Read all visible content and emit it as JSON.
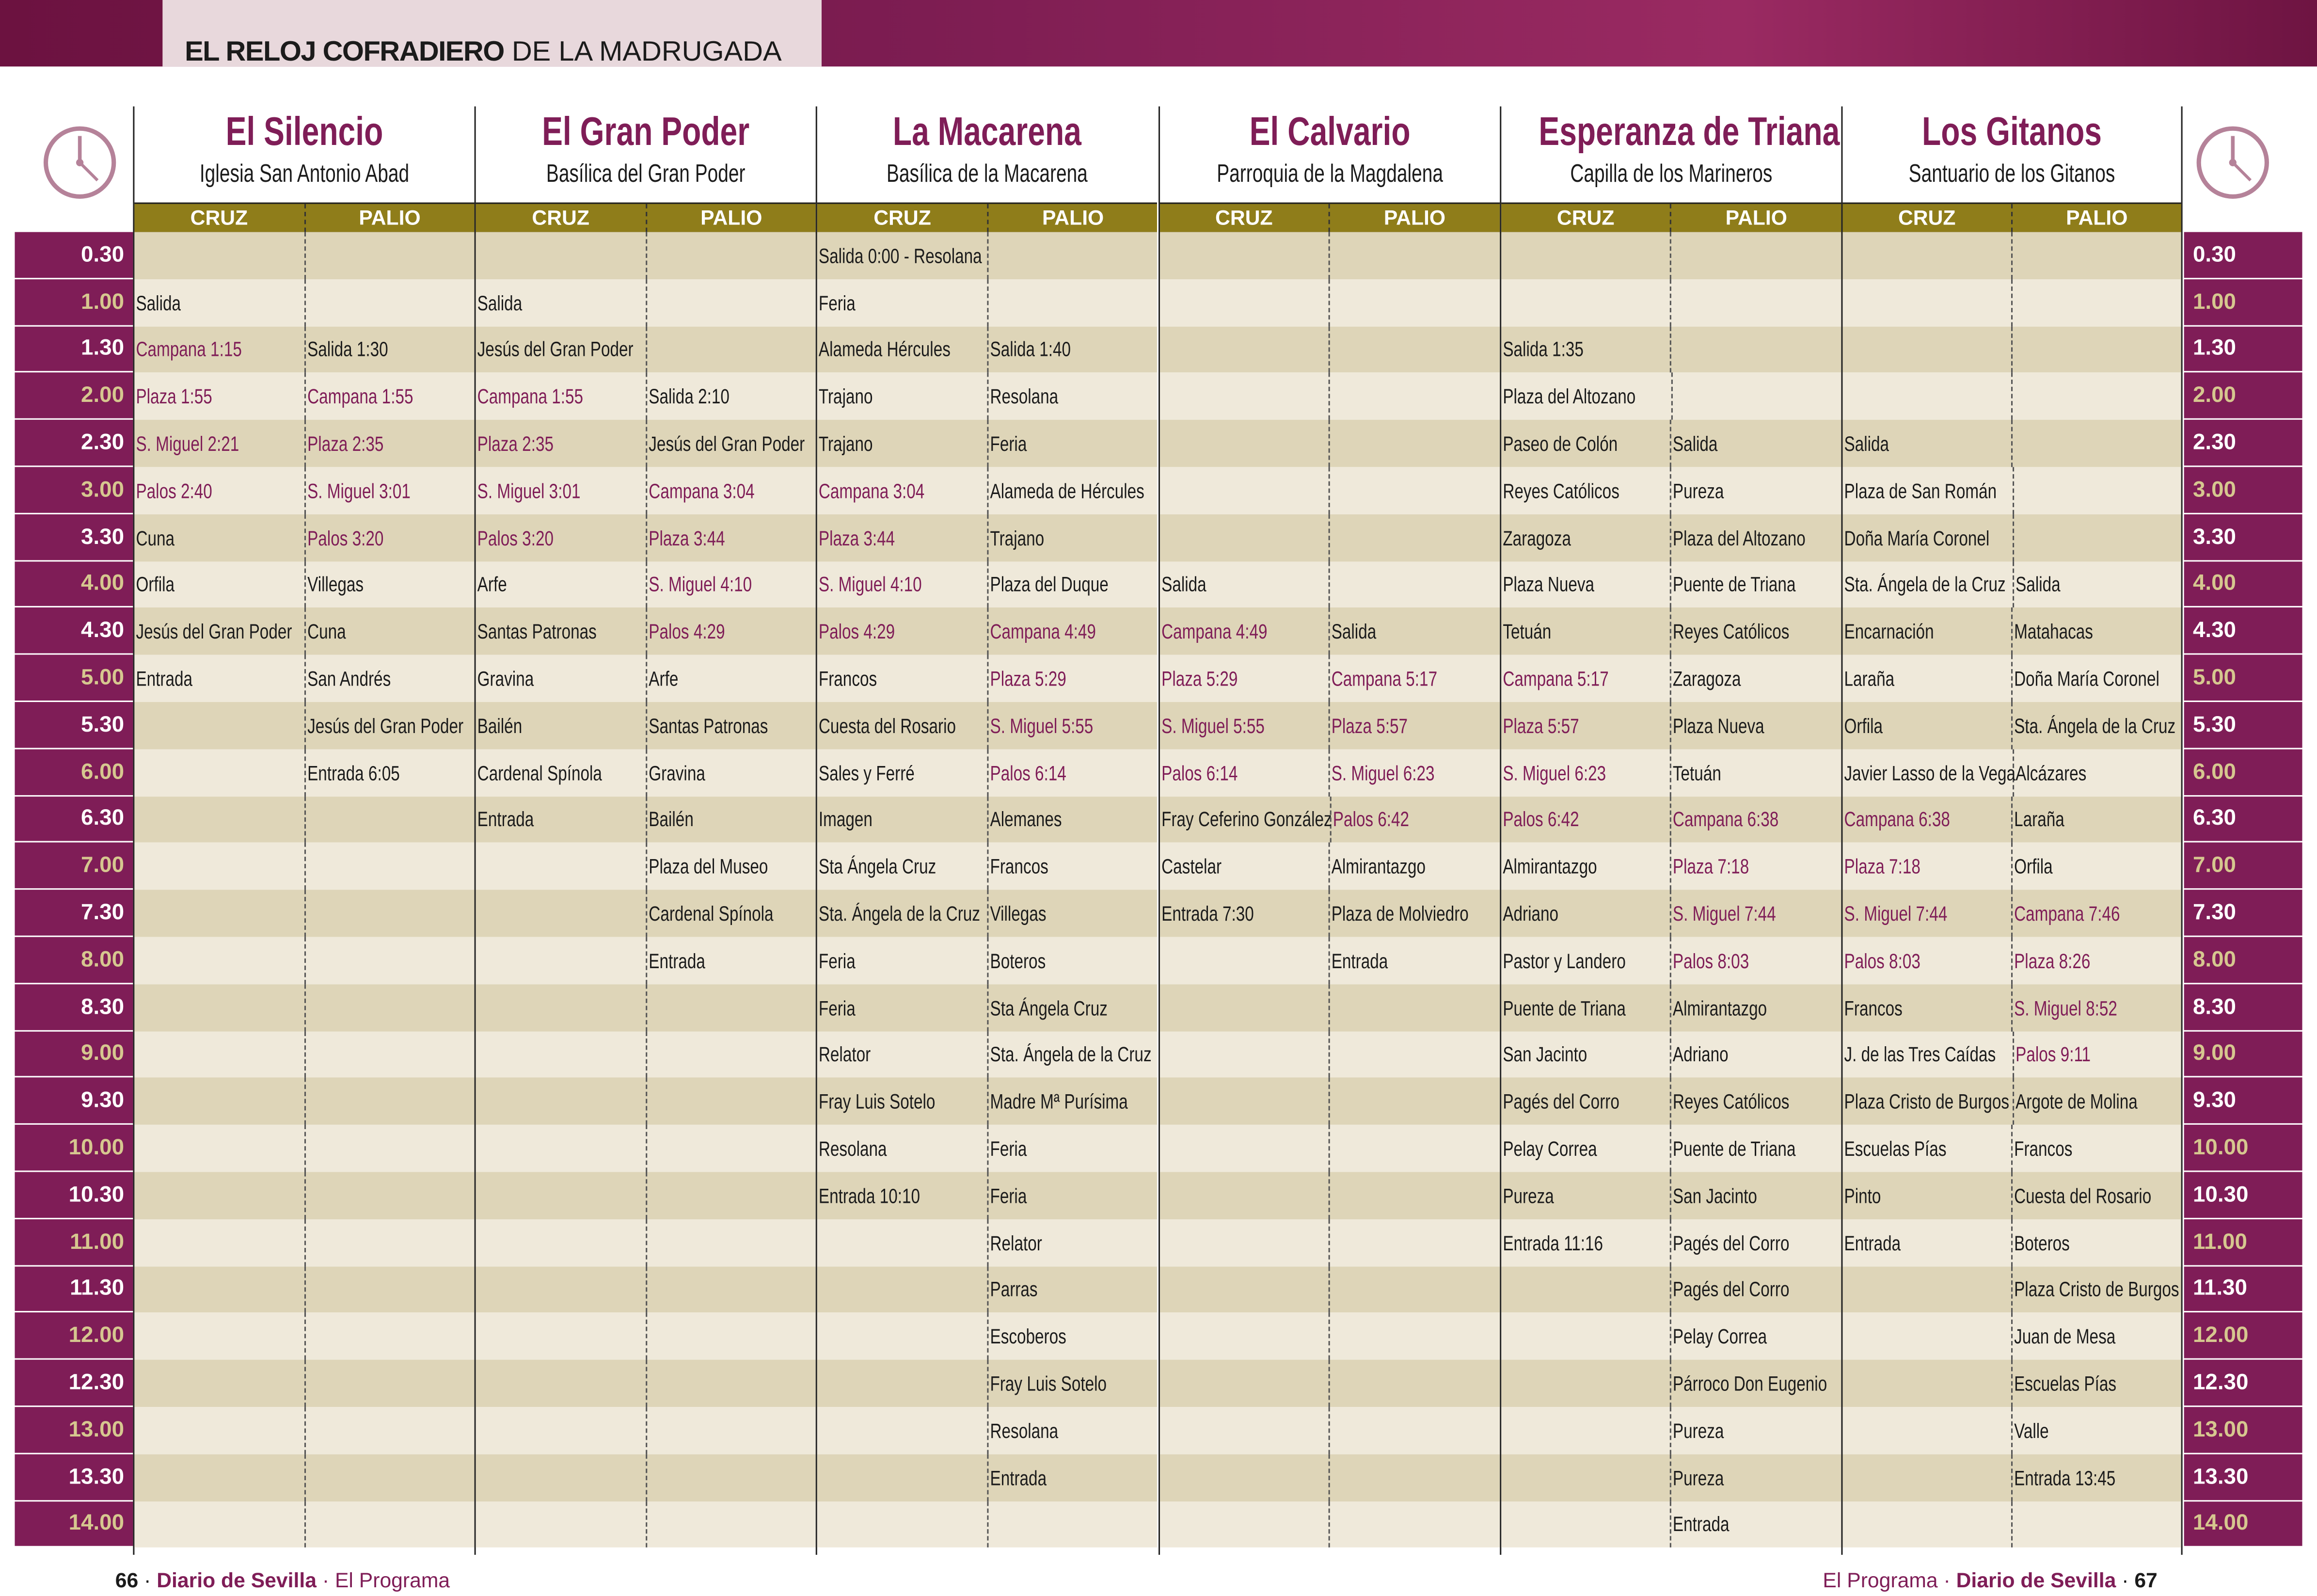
{
  "header": {
    "title_bold": "EL RELOJ COFRADIERO",
    "title_rest": "DE LA MADRUGADA"
  },
  "colors": {
    "brand": "#7f1d57",
    "subheader": "#8f7d1a",
    "row_dark": "#ded5b8",
    "row_light": "#efe9da",
    "full_hour_text": "#d6c78f",
    "clock": "#b58299"
  },
  "icons": {
    "clock": "clock-icon"
  },
  "columns": {
    "cruz": "CRUZ",
    "palio": "PALIO"
  },
  "times": [
    "0.30",
    "1.00",
    "1.30",
    "2.00",
    "2.30",
    "3.00",
    "3.30",
    "4.00",
    "4.30",
    "5.00",
    "5.30",
    "6.00",
    "6.30",
    "7.00",
    "7.30",
    "8.00",
    "8.30",
    "9.00",
    "9.30",
    "10.00",
    "10.30",
    "11.00",
    "11.30",
    "12.00",
    "12.30",
    "13.00",
    "13.30",
    "14.00"
  ],
  "brotherhoods": [
    {
      "name": "El Silencio",
      "place": "Iglesia San Antonio Abad",
      "cruz": [
        "",
        "Salida",
        "Campana 1:15",
        "Plaza 1:55",
        "S. Miguel 2:21",
        "Palos 2:40",
        "Cuna",
        "Orfila",
        "Jesús del Gran Poder",
        "Entrada"
      ],
      "palio": [
        "",
        "",
        "Salida 1:30",
        "Campana 1:55",
        "Plaza 2:35",
        "S. Miguel 3:01",
        "Palos 3:20",
        "Villegas",
        "Cuna",
        "San Andrés",
        "Jesús del Gran Poder",
        "Entrada 6:05"
      ]
    },
    {
      "name": "El Gran Poder",
      "place": "Basílica del Gran Poder",
      "cruz": [
        "",
        "Salida",
        "Jesús del Gran Poder",
        "Campana 1:55",
        "Plaza 2:35",
        "S. Miguel 3:01",
        "Palos 3:20",
        "Arfe",
        "Santas Patronas",
        "Gravina",
        "Bailén",
        "Cardenal Spínola",
        "Entrada"
      ],
      "palio": [
        "",
        "",
        "",
        "Salida 2:10",
        "Jesús del Gran Poder",
        "Campana 3:04",
        "Plaza 3:44",
        "S. Miguel 4:10",
        "Palos 4:29",
        "Arfe",
        "Santas Patronas",
        "Gravina",
        "Bailén",
        "Plaza del Museo",
        "Cardenal Spínola",
        "Entrada"
      ]
    },
    {
      "name": "La Macarena",
      "place": "Basílica de la Macarena",
      "cruz": [
        "Salida 0:00 - Resolana",
        "Feria",
        "Alameda Hércules",
        "Trajano",
        "Trajano",
        "Campana 3:04",
        "Plaza 3:44",
        "S. Miguel 4:10",
        "Palos 4:29",
        "Francos",
        "Cuesta del Rosario",
        "Sales y Ferré",
        "Imagen",
        "Sta Ángela Cruz",
        "Sta. Ángela de la Cruz",
        "Feria",
        "Feria",
        "Relator",
        "Fray Luis Sotelo",
        "Resolana",
        "Entrada 10:10"
      ],
      "palio": [
        "",
        "",
        "Salida 1:40",
        "Resolana",
        "Feria",
        "Alameda de Hércules",
        "Trajano",
        "Plaza del Duque",
        "Campana 4:49",
        "Plaza 5:29",
        "S. Miguel 5:55",
        "Palos 6:14",
        "Alemanes",
        "Francos",
        "Villegas",
        "Boteros",
        "Sta Ángela Cruz",
        "Sta. Ángela de la Cruz",
        "Madre Mª Purísima",
        "Feria",
        "Feria",
        "Relator",
        "Parras",
        "Escoberos",
        "Fray Luis Sotelo",
        "Resolana",
        "Entrada"
      ]
    },
    {
      "name": "El Calvario",
      "place": "Parroquia de la Magdalena",
      "cruz": [
        "",
        "",
        "",
        "",
        "",
        "",
        "",
        "Salida",
        "Campana 4:49",
        "Plaza 5:29",
        "S. Miguel 5:55",
        "Palos 6:14",
        "Fray Ceferino González",
        "Castelar",
        "Entrada 7:30"
      ],
      "palio": [
        "",
        "",
        "",
        "",
        "",
        "",
        "",
        "",
        "Salida",
        "Campana 5:17",
        "Plaza 5:57",
        "S. Miguel 6:23",
        "Palos 6:42",
        "Almirantazgo",
        "Plaza de Molviedro",
        "Entrada"
      ]
    },
    {
      "name": "Esperanza de Triana",
      "place": "Capilla de los Marineros",
      "cruz": [
        "",
        "",
        "Salida 1:35",
        "Plaza del Altozano",
        "Paseo de Colón",
        "Reyes Católicos",
        "Zaragoza",
        "Plaza Nueva",
        "Tetuán",
        "Campana 5:17",
        "Plaza 5:57",
        "S. Miguel 6:23",
        "Palos 6:42",
        "Almirantazgo",
        "Adriano",
        "Pastor y Landero",
        "Puente de Triana",
        "San Jacinto",
        "Pagés del Corro",
        "Pelay Correa",
        "Pureza",
        "Entrada 11:16"
      ],
      "palio": [
        "",
        "",
        "",
        "",
        "Salida",
        "Pureza",
        "Plaza del Altozano",
        "Puente de Triana",
        "Reyes Católicos",
        "Zaragoza",
        "Plaza Nueva",
        "Tetuán",
        "Campana 6:38",
        "Plaza 7:18",
        "S. Miguel 7:44",
        "Palos 8:03",
        "Almirantazgo",
        "Adriano",
        "Reyes Católicos",
        "Puente de Triana",
        "San Jacinto",
        "Pagés del Corro",
        "Pagés del Corro",
        "Pelay Correa",
        "Párroco Don Eugenio",
        "Pureza",
        "Pureza",
        "Entrada"
      ]
    },
    {
      "name": "Los Gitanos",
      "place": "Santuario de los Gitanos",
      "cruz": [
        "",
        "",
        "",
        "",
        "Salida",
        "Plaza de San Román",
        "Doña María Coronel",
        "Sta. Ángela de la Cruz",
        "Encarnación",
        "Laraña",
        "Orfila",
        "Javier Lasso de la Vega",
        "Campana 6:38",
        "Plaza 7:18",
        "S. Miguel 7:44",
        "Palos 8:03",
        "Francos",
        "J. de las Tres Caídas",
        "Plaza Cristo de Burgos",
        "Escuelas Pías",
        "Pinto",
        "Entrada"
      ],
      "palio": [
        "",
        "",
        "",
        "",
        "",
        "",
        "",
        "Salida",
        "Matahacas",
        "Doña María Coronel",
        "Sta. Ángela de la Cruz",
        "Alcázares",
        "Laraña",
        "Orfila",
        "Campana 7:46",
        "Plaza 8:26",
        "S. Miguel 8:52",
        "Palos 9:11",
        "Argote de Molina",
        "Francos",
        "Cuesta del Rosario",
        "Boteros",
        "Plaza Cristo de Burgos",
        "Juan de Mesa",
        "Escuelas Pías",
        "Valle",
        "Entrada 13:45"
      ]
    }
  ],
  "footer": {
    "left": {
      "page": "66",
      "brand": "Diario de Sevilla",
      "section": "El Programa"
    },
    "right": {
      "page": "67",
      "brand": "Diario de Sevilla",
      "section": "El Programa"
    },
    "separator": "·"
  }
}
